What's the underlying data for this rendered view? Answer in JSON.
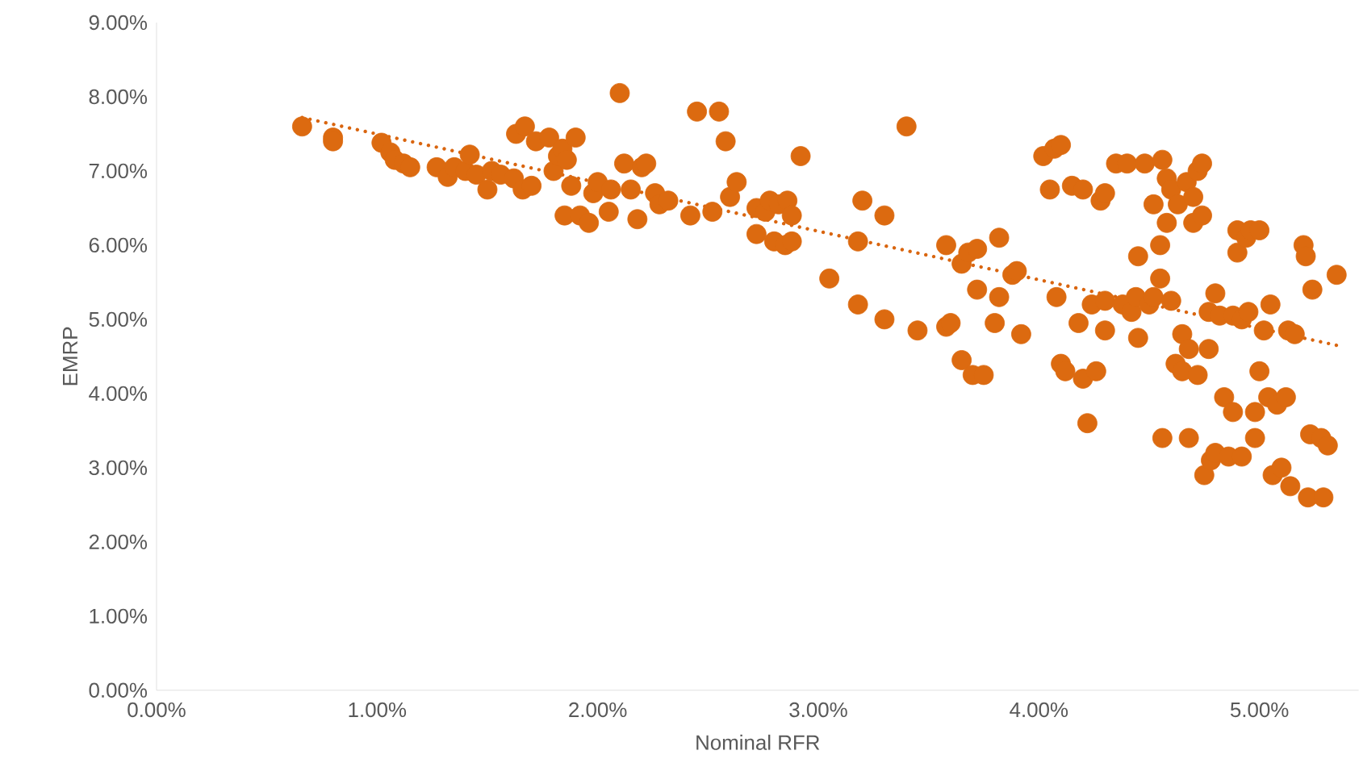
{
  "chart_data": {
    "type": "scatter",
    "xlabel": "Nominal RFR",
    "ylabel": "EMRP",
    "xlim": [
      0,
      5.45
    ],
    "ylim": [
      0,
      9
    ],
    "xticks": [
      {
        "value": 0,
        "label": "0.00%"
      },
      {
        "value": 1,
        "label": "1.00%"
      },
      {
        "value": 2,
        "label": "2.00%"
      },
      {
        "value": 3,
        "label": "3.00%"
      },
      {
        "value": 4,
        "label": "4.00%"
      },
      {
        "value": 5,
        "label": "5.00%"
      }
    ],
    "yticks": [
      {
        "value": 0,
        "label": "0.00%"
      },
      {
        "value": 1,
        "label": "1.00%"
      },
      {
        "value": 2,
        "label": "2.00%"
      },
      {
        "value": 3,
        "label": "3.00%"
      },
      {
        "value": 4,
        "label": "4.00%"
      },
      {
        "value": 5,
        "label": "5.00%"
      },
      {
        "value": 6,
        "label": "6.00%"
      },
      {
        "value": 7,
        "label": "7.00%"
      },
      {
        "value": 8,
        "label": "8.00%"
      },
      {
        "value": 9,
        "label": "9.00%"
      }
    ],
    "marker": "circle",
    "series": [
      {
        "color": "#dc6a10",
        "x": [
          0.66,
          0.8,
          0.8,
          1.02,
          1.06,
          1.08,
          1.12,
          1.15,
          1.27,
          1.32,
          1.35,
          1.4,
          1.42,
          1.45,
          1.5,
          1.52,
          1.56,
          1.62,
          1.63,
          1.67,
          1.66,
          1.7,
          1.72,
          1.78,
          1.8,
          1.82,
          1.84,
          1.85,
          1.86,
          1.88,
          1.9,
          1.92,
          1.96,
          1.98,
          2.0,
          2.05,
          2.06,
          2.1,
          2.12,
          2.15,
          2.18,
          2.2,
          2.22,
          2.26,
          2.28,
          2.32,
          2.42,
          2.45,
          2.52,
          2.55,
          2.58,
          2.6,
          2.63,
          2.72,
          2.72,
          2.76,
          2.78,
          2.8,
          2.82,
          2.85,
          2.86,
          2.88,
          2.88,
          2.92,
          3.05,
          3.18,
          3.18,
          3.2,
          3.3,
          3.3,
          3.4,
          3.45,
          3.58,
          3.58,
          3.6,
          3.65,
          3.65,
          3.68,
          3.7,
          3.72,
          3.72,
          3.75,
          3.8,
          3.82,
          3.82,
          3.88,
          3.9,
          3.92,
          4.02,
          4.05,
          4.07,
          4.08,
          4.1,
          4.1,
          4.12,
          4.15,
          4.18,
          4.2,
          4.2,
          4.22,
          4.24,
          4.26,
          4.28,
          4.3,
          4.3,
          4.3,
          4.35,
          4.38,
          4.4,
          4.42,
          4.44,
          4.45,
          4.45,
          4.48,
          4.5,
          4.52,
          4.52,
          4.55,
          4.55,
          4.56,
          4.56,
          4.58,
          4.58,
          4.6,
          4.6,
          4.62,
          4.63,
          4.65,
          4.65,
          4.67,
          4.68,
          4.68,
          4.7,
          4.7,
          4.72,
          4.72,
          4.74,
          4.74,
          4.75,
          4.77,
          4.77,
          4.78,
          4.8,
          4.8,
          4.82,
          4.84,
          4.86,
          4.88,
          4.88,
          4.9,
          4.9,
          4.92,
          4.92,
          4.94,
          4.95,
          4.96,
          4.98,
          4.98,
          5.0,
          5.0,
          5.02,
          5.04,
          5.05,
          5.06,
          5.08,
          5.1,
          5.12,
          5.13,
          5.14,
          5.16,
          5.2,
          5.21,
          5.22,
          5.23,
          5.24,
          5.28,
          5.29,
          5.31,
          5.35
        ],
        "values": [
          7.6,
          7.45,
          7.4,
          7.38,
          7.25,
          7.15,
          7.1,
          7.05,
          7.05,
          6.92,
          7.05,
          7.0,
          7.22,
          6.95,
          6.75,
          7.0,
          6.95,
          6.9,
          7.5,
          7.6,
          6.75,
          6.8,
          7.4,
          7.45,
          7.0,
          7.2,
          7.3,
          6.4,
          7.15,
          6.8,
          7.45,
          6.4,
          6.3,
          6.7,
          6.85,
          6.45,
          6.75,
          8.05,
          7.1,
          6.75,
          6.35,
          7.05,
          7.1,
          6.7,
          6.55,
          6.6,
          6.4,
          7.8,
          6.45,
          7.8,
          7.4,
          6.65,
          6.85,
          6.5,
          6.15,
          6.45,
          6.6,
          6.05,
          6.55,
          6.0,
          6.6,
          6.4,
          6.05,
          7.2,
          5.55,
          5.2,
          6.05,
          6.6,
          5.0,
          6.4,
          7.6,
          4.85,
          6.0,
          4.9,
          4.95,
          5.75,
          4.45,
          5.9,
          4.25,
          5.95,
          5.4,
          4.25,
          4.95,
          5.3,
          6.1,
          5.6,
          5.65,
          4.8,
          7.2,
          6.75,
          7.3,
          5.3,
          7.35,
          4.4,
          4.3,
          6.8,
          4.95,
          6.75,
          4.2,
          3.6,
          5.2,
          4.3,
          6.6,
          6.7,
          5.25,
          4.85,
          7.1,
          5.2,
          7.1,
          5.1,
          5.3,
          4.75,
          5.85,
          7.1,
          5.2,
          6.55,
          5.3,
          5.55,
          6.0,
          7.15,
          3.4,
          6.3,
          6.9,
          6.75,
          5.25,
          4.4,
          6.55,
          4.8,
          4.3,
          6.85,
          3.4,
          4.6,
          6.3,
          6.65,
          7.0,
          4.25,
          6.4,
          7.1,
          2.9,
          4.6,
          5.1,
          3.1,
          3.2,
          5.35,
          5.05,
          3.95,
          3.15,
          3.75,
          5.05,
          6.2,
          5.9,
          3.15,
          5.0,
          6.1,
          5.1,
          6.2,
          3.75,
          3.4,
          4.3,
          6.2,
          4.85,
          3.95,
          5.2,
          2.9,
          3.85,
          3.0,
          3.95,
          4.85,
          2.75,
          4.8,
          6.0,
          5.85,
          2.6,
          3.45,
          5.4,
          3.4,
          2.6,
          3.3,
          5.6
        ]
      },
      {
        "type": "line",
        "color": "#d9650f",
        "line_style": "dotted",
        "marker": "none",
        "x": [
          0.66,
          5.35
        ],
        "values": [
          7.72,
          4.65
        ]
      }
    ]
  }
}
